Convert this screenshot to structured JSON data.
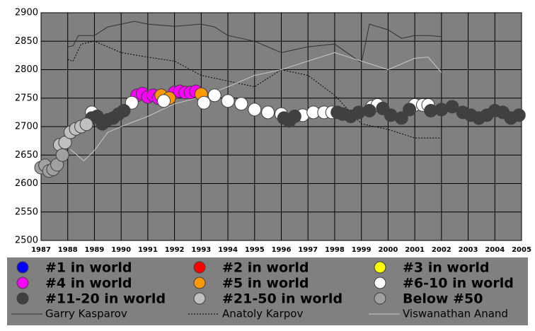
{
  "chart_data": {
    "type": "scatter",
    "xlim": [
      1987,
      2005
    ],
    "xticks": [
      1987,
      1988,
      1989,
      1990,
      1991,
      1992,
      1993,
      1994,
      1995,
      1996,
      1997,
      1998,
      1999,
      2000,
      2001,
      2002,
      2003,
      2004,
      2005
    ],
    "ylim": [
      2500,
      2900
    ],
    "yticks": [
      2500,
      2550,
      2600,
      2650,
      2700,
      2750,
      2800,
      2850,
      2900
    ],
    "grid": true,
    "series": [
      {
        "name": "#1 in world",
        "color": "#0000ff",
        "x": [],
        "values": []
      },
      {
        "name": "#2 in world",
        "color": "#ff0000",
        "x": [],
        "values": []
      },
      {
        "name": "#3 in world",
        "color": "#ffff00",
        "x": [],
        "values": []
      },
      {
        "name": "#4 in world",
        "color": "#ff00ff",
        "x": [
          1990.6,
          1990.8,
          1991.0,
          1991.2,
          1991.4,
          1992.0,
          1992.2,
          1992.4,
          1992.6,
          1992.8
        ],
        "values": [
          2755,
          2758,
          2752,
          2755,
          2750,
          2760,
          2762,
          2760,
          2760,
          2762
        ]
      },
      {
        "name": "#5 in world",
        "color": "#ff9900",
        "x": [
          1991.5,
          1991.8,
          1993.0
        ],
        "values": [
          2755,
          2750,
          2757
        ]
      },
      {
        "name": "#6-10 in world",
        "color": "#ffffff",
        "x": [
          1988.9,
          1990.4,
          1991.6,
          1993.1,
          1993.5,
          1994.0,
          1994.5,
          1995.0,
          1995.5,
          1996.0,
          1996.8,
          1997.2,
          1997.6,
          1997.9,
          1999.4,
          1999.6,
          2001.0,
          2001.3,
          2001.5
        ],
        "values": [
          2725,
          2742,
          2745,
          2742,
          2755,
          2745,
          2740,
          2730,
          2725,
          2722,
          2720,
          2725,
          2725,
          2725,
          2735,
          2738,
          2738,
          2738,
          2738
        ]
      },
      {
        "name": "#11-20 in world",
        "color": "#404040",
        "x": [
          1988.9,
          1989.1,
          1989.3,
          1989.5,
          1989.7,
          1989.9,
          1990.1,
          1996.1,
          1996.3,
          1996.5,
          1998.1,
          1998.3,
          1998.6,
          1998.9,
          1999.3,
          1999.8,
          2000.1,
          2000.5,
          2000.8,
          2001.6,
          2002.0,
          2002.4,
          2002.8,
          2003.1,
          2003.4,
          2003.7,
          2004.0,
          2004.3,
          2004.6,
          2004.9
        ],
        "values": [
          2715,
          2718,
          2705,
          2712,
          2715,
          2722,
          2728,
          2715,
          2710,
          2718,
          2725,
          2722,
          2718,
          2725,
          2728,
          2732,
          2720,
          2715,
          2730,
          2728,
          2730,
          2735,
          2725,
          2720,
          2715,
          2720,
          2728,
          2725,
          2715,
          2720
        ]
      },
      {
        "name": "#21-50 in world",
        "color": "#c0c0c0",
        "x": [
          1987.7,
          1987.9,
          1988.1,
          1988.3,
          1988.5,
          1988.7
        ],
        "values": [
          2668,
          2672,
          2690,
          2696,
          2700,
          2704
        ]
      },
      {
        "name": "Below #50",
        "color": "#a0a0a0",
        "x": [
          1987.0,
          1987.15,
          1987.3,
          1987.45,
          1987.6,
          1987.8
        ],
        "values": [
          2628,
          2632,
          2622,
          2625,
          2633,
          2650
        ]
      },
      {
        "name": "Garry Kasparov",
        "type": "line",
        "style": "solid",
        "color": "#303030",
        "x": [
          1988.0,
          1988.2,
          1988.4,
          1989.0,
          1989.5,
          1990.0,
          1990.5,
          1991.0,
          1992.0,
          1993.0,
          1993.5,
          1994.0,
          1995.0,
          1996.0,
          1996.5,
          1997.0,
          1998.0,
          1999.0,
          1999.3,
          2000.0,
          2000.5,
          2001.0,
          2001.5,
          2002.0
        ],
        "values": [
          2840,
          2842,
          2860,
          2860,
          2875,
          2880,
          2885,
          2880,
          2876,
          2880,
          2875,
          2860,
          2850,
          2830,
          2835,
          2840,
          2845,
          2812,
          2880,
          2870,
          2855,
          2860,
          2860,
          2858
        ]
      },
      {
        "name": "Anatoly Karpov",
        "type": "line",
        "style": "dotted",
        "color": "#000000",
        "x": [
          1988.0,
          1988.2,
          1988.5,
          1989.0,
          1990.0,
          1991.0,
          1992.0,
          1993.0,
          1994.0,
          1995.0,
          1996.0,
          1997.0,
          1998.0,
          1999.0,
          2000.0,
          2001.0,
          2002.0
        ],
        "values": [
          2818,
          2815,
          2845,
          2850,
          2830,
          2822,
          2815,
          2790,
          2780,
          2770,
          2800,
          2790,
          2755,
          2705,
          2695,
          2680,
          2680
        ]
      },
      {
        "name": "Viswanathan Anand",
        "type": "line",
        "style": "solid",
        "color": "#c8c8c8",
        "x": [
          1988.1,
          1988.6,
          1989.0,
          1989.5,
          1990.0,
          1991.0,
          1992.0,
          1993.0,
          1994.0,
          1995.0,
          1996.0,
          1997.0,
          1998.0,
          1999.0,
          2000.0,
          2001.0,
          2001.5,
          2002.0
        ],
        "values": [
          2660,
          2640,
          2658,
          2690,
          2700,
          2718,
          2740,
          2752,
          2770,
          2790,
          2800,
          2815,
          2830,
          2815,
          2800,
          2820,
          2822,
          2795
        ]
      }
    ]
  }
}
